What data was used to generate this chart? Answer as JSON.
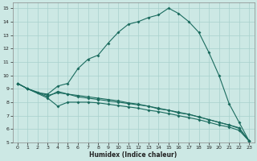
{
  "xlabel": "Humidex (Indice chaleur)",
  "ylabel": "",
  "bg_color": "#cce8e4",
  "grid_color": "#a8d0cc",
  "line_color": "#1a6b5e",
  "xlim": [
    -0.5,
    23.5
  ],
  "ylim": [
    5,
    15.4
  ],
  "yticks": [
    5,
    6,
    7,
    8,
    9,
    10,
    11,
    12,
    13,
    14,
    15
  ],
  "xticks": [
    0,
    1,
    2,
    3,
    4,
    5,
    6,
    7,
    8,
    9,
    10,
    11,
    12,
    13,
    14,
    15,
    16,
    17,
    18,
    19,
    20,
    21,
    22,
    23
  ],
  "line1_x": [
    0,
    1,
    2,
    3,
    4,
    5,
    6,
    7,
    8,
    9,
    10,
    11,
    12,
    13,
    14,
    15,
    16,
    17,
    18,
    19,
    20,
    21,
    22,
    23
  ],
  "line1_y": [
    9.4,
    9.0,
    8.7,
    8.6,
    9.2,
    9.4,
    10.5,
    11.2,
    11.5,
    12.4,
    13.2,
    13.8,
    14.0,
    14.3,
    14.5,
    15.0,
    14.6,
    14.0,
    13.2,
    11.7,
    10.0,
    7.9,
    6.5,
    5.1
  ],
  "line2_x": [
    0,
    1,
    3,
    4,
    5,
    6,
    7,
    8,
    9,
    10,
    11,
    12,
    13,
    14,
    15,
    16,
    17,
    18,
    19,
    20,
    21,
    22,
    23
  ],
  "line2_y": [
    9.4,
    9.0,
    8.5,
    8.7,
    8.6,
    8.4,
    8.3,
    8.2,
    8.1,
    8.0,
    7.9,
    7.8,
    7.7,
    7.5,
    7.4,
    7.2,
    7.1,
    6.9,
    6.7,
    6.5,
    6.3,
    6.1,
    5.1
  ],
  "line3_x": [
    0,
    1,
    3,
    4,
    5,
    6,
    7,
    8,
    9,
    10,
    11,
    12,
    13,
    14,
    15,
    16,
    17,
    18,
    19,
    20,
    21,
    22,
    23
  ],
  "line3_y": [
    9.4,
    9.0,
    8.3,
    7.7,
    8.0,
    8.0,
    8.0,
    7.95,
    7.85,
    7.75,
    7.65,
    7.55,
    7.4,
    7.3,
    7.15,
    7.0,
    6.85,
    6.7,
    6.5,
    6.3,
    6.15,
    5.9,
    5.1
  ],
  "line4_x": [
    0,
    1,
    3,
    4,
    5,
    6,
    7,
    8,
    9,
    10,
    11,
    12,
    13,
    14,
    15,
    16,
    17,
    18,
    19,
    20,
    21,
    22,
    23
  ],
  "line4_y": [
    9.4,
    9.0,
    8.4,
    8.8,
    8.6,
    8.5,
    8.4,
    8.3,
    8.2,
    8.1,
    7.95,
    7.85,
    7.7,
    7.55,
    7.4,
    7.25,
    7.1,
    6.9,
    6.7,
    6.5,
    6.3,
    6.05,
    5.1
  ]
}
